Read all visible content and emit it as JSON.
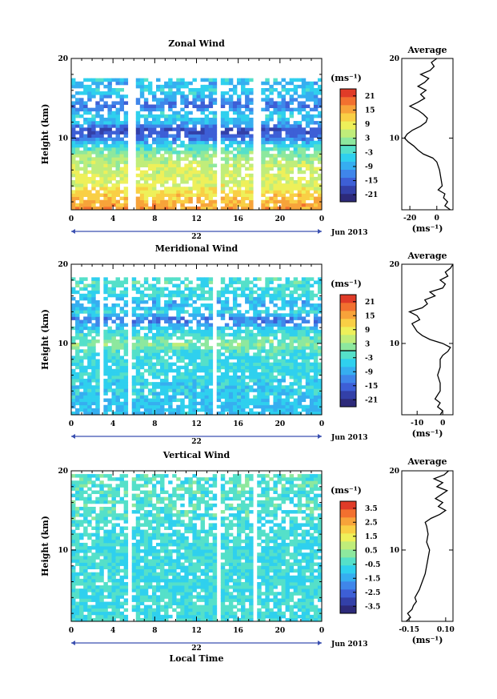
{
  "chart_data": [
    {
      "type": "heatmap",
      "title": "Zonal Wind",
      "ylabel": "Height (km)",
      "ylim": [
        1,
        20
      ],
      "y_ticks": [
        "10",
        "20"
      ],
      "xlim": [
        0,
        24
      ],
      "x_ticks": [
        "0",
        "4",
        "8",
        "12",
        "16",
        "20",
        "0"
      ],
      "date_marker": "22",
      "date_label": "Jun 2013",
      "colorbar": {
        "unit_label": "(ms⁻¹)",
        "tick_labels": [
          "21",
          "15",
          "9",
          "3",
          "-3",
          "-9",
          "-15",
          "-21"
        ],
        "range": [
          -24,
          24
        ],
        "zero_line": true
      },
      "gaps": [
        [
          5.5,
          6.0
        ],
        [
          13.8,
          14.2
        ],
        [
          17.6,
          18.0
        ]
      ],
      "top_of_data_km": 17.5,
      "profile_by_height_km": {
        "heights": [
          1,
          2,
          3,
          4,
          5,
          6,
          7,
          8,
          9,
          10,
          11,
          12,
          13,
          14,
          15,
          16,
          17,
          18
        ],
        "values": [
          16,
          14,
          11,
          8,
          7,
          6,
          5,
          2,
          -3,
          -13,
          -18,
          -8,
          -4,
          -14,
          -10,
          -4,
          -9,
          3
        ]
      },
      "average": {
        "title": "Average",
        "xlabel": "(ms⁻¹)",
        "x_ticks": [
          "-20",
          "0"
        ],
        "xlim": [
          -26,
          12
        ],
        "heights": [
          1.0,
          1.5,
          2.0,
          2.5,
          3.0,
          3.5,
          4.0,
          5.0,
          6.0,
          7.0,
          7.5,
          8.0,
          8.5,
          9.0,
          9.5,
          10.0,
          10.5,
          11.0,
          11.5,
          12.0,
          12.5,
          13.0,
          13.5,
          14.0,
          14.5,
          15.0,
          15.5,
          16.0,
          16.5,
          17.0,
          17.5,
          18.0,
          18.5,
          19.0,
          19.5,
          20.0
        ],
        "values": [
          10,
          6,
          8,
          5,
          6,
          1,
          4,
          3,
          2,
          0,
          -3,
          -10,
          -14,
          -17,
          -21,
          -24,
          -22,
          -18,
          -12,
          -8,
          -7,
          -10,
          -14,
          -20,
          -14,
          -9,
          -12,
          -8,
          -14,
          -9,
          -6,
          -12,
          -5,
          -2,
          -4,
          0
        ]
      }
    },
    {
      "type": "heatmap",
      "title": "Meridional Wind",
      "ylabel": "Height (km)",
      "ylim": [
        1,
        20
      ],
      "y_ticks": [
        "10",
        "20"
      ],
      "xlim": [
        0,
        24
      ],
      "x_ticks": [
        "0",
        "4",
        "8",
        "12",
        "16",
        "20",
        "0"
      ],
      "date_marker": "22",
      "date_label": "Jun 2013",
      "colorbar": {
        "unit_label": "(ms⁻¹)",
        "tick_labels": [
          "21",
          "15",
          "9",
          "3",
          "-3",
          "-9",
          "-15",
          "-21"
        ],
        "range": [
          -24,
          24
        ],
        "zero_line": true
      },
      "gaps": [
        [
          2.6,
          3.0
        ],
        [
          5.4,
          5.8
        ],
        [
          13.7,
          14.1
        ],
        [
          17.3,
          17.6
        ]
      ],
      "top_of_data_km": 18.5,
      "profile_by_height_km": {
        "heights": [
          1,
          2,
          3,
          4,
          5,
          6,
          7,
          8,
          9,
          10,
          11,
          12,
          13,
          14,
          15,
          16,
          17,
          18
        ],
        "values": [
          -6,
          -7,
          -6,
          -5,
          -5,
          -4,
          -4,
          -4,
          -2,
          2,
          -2,
          -6,
          -14,
          -4,
          -9,
          -4,
          -3,
          -2
        ]
      },
      "average": {
        "title": "Average",
        "xlabel": "(ms⁻¹)",
        "x_ticks": [
          "-10",
          "0"
        ],
        "xlim": [
          -16,
          4
        ],
        "heights": [
          1.0,
          1.5,
          2.0,
          2.5,
          3.0,
          3.5,
          4.0,
          5.0,
          6.0,
          7.0,
          8.0,
          8.5,
          9.0,
          9.5,
          10.0,
          10.5,
          11.0,
          11.5,
          12.0,
          12.5,
          13.0,
          13.5,
          14.0,
          14.5,
          15.0,
          15.5,
          16.0,
          16.5,
          17.0,
          17.5,
          18.0,
          18.5,
          19.0,
          19.5,
          20.0
        ],
        "values": [
          -1,
          0,
          -2,
          -1,
          -3,
          -2,
          -1,
          -1,
          -2,
          -1,
          -1,
          0,
          2,
          3,
          0,
          -5,
          -8,
          -10,
          -11,
          -12,
          -9,
          -10,
          -13,
          -8,
          -6,
          -7,
          -3,
          -5,
          0,
          1,
          -1,
          2,
          1,
          3,
          4
        ]
      }
    },
    {
      "type": "heatmap",
      "title": "Vertical Wind",
      "xlabel": "Local Time",
      "ylabel": "Height (km)",
      "ylim": [
        1,
        20
      ],
      "y_ticks": [
        "10",
        "20"
      ],
      "xlim": [
        0,
        24
      ],
      "x_ticks": [
        "0",
        "4",
        "8",
        "12",
        "16",
        "20",
        "0"
      ],
      "date_marker": "22",
      "date_label": "Jun 2013",
      "colorbar": {
        "unit_label": "(ms⁻¹)",
        "tick_labels": [
          "3.5",
          "2.5",
          "1.5",
          "0.5",
          "-0.5",
          "-1.5",
          "-2.5",
          "-3.5"
        ],
        "range": [
          -4,
          4
        ],
        "zero_line": false
      },
      "gaps": [
        [
          5.4,
          5.8
        ],
        [
          13.8,
          14.2
        ],
        [
          17.5,
          17.9
        ]
      ],
      "top_of_data_km": 19.5,
      "profile_by_height_km": {
        "heights": [
          1,
          2,
          3,
          4,
          5,
          6,
          7,
          8,
          9,
          10,
          11,
          12,
          13,
          14,
          15,
          16,
          17,
          18,
          19
        ],
        "values": [
          -0.5,
          -0.6,
          -0.5,
          -0.6,
          -0.5,
          -0.5,
          -0.6,
          -0.5,
          -0.5,
          -0.6,
          -0.5,
          -0.5,
          -0.6,
          -0.4,
          -0.4,
          -0.3,
          -0.4,
          -0.3,
          -0.3
        ]
      },
      "average": {
        "title": "Average",
        "xlabel": "(ms⁻¹)",
        "x_ticks": [
          "-0.15",
          "0.10"
        ],
        "xlim": [
          -0.2,
          0.15
        ],
        "heights": [
          1.0,
          1.5,
          2.0,
          2.5,
          3.0,
          3.5,
          4.0,
          5.0,
          6.0,
          7.0,
          8.0,
          9.0,
          10.0,
          11.0,
          12.0,
          13.0,
          13.5,
          14.0,
          14.5,
          15.0,
          15.5,
          16.0,
          16.5,
          17.0,
          17.5,
          18.0,
          18.5,
          19.0,
          19.5,
          20.0
        ],
        "values": [
          -0.17,
          -0.14,
          -0.16,
          -0.13,
          -0.12,
          -0.1,
          -0.11,
          -0.08,
          -0.06,
          -0.04,
          -0.03,
          -0.02,
          -0.01,
          -0.03,
          -0.02,
          -0.03,
          -0.04,
          0.0,
          0.06,
          0.1,
          0.05,
          0.08,
          0.03,
          0.07,
          0.11,
          0.04,
          0.08,
          0.02,
          0.09,
          0.12
        ]
      }
    }
  ]
}
